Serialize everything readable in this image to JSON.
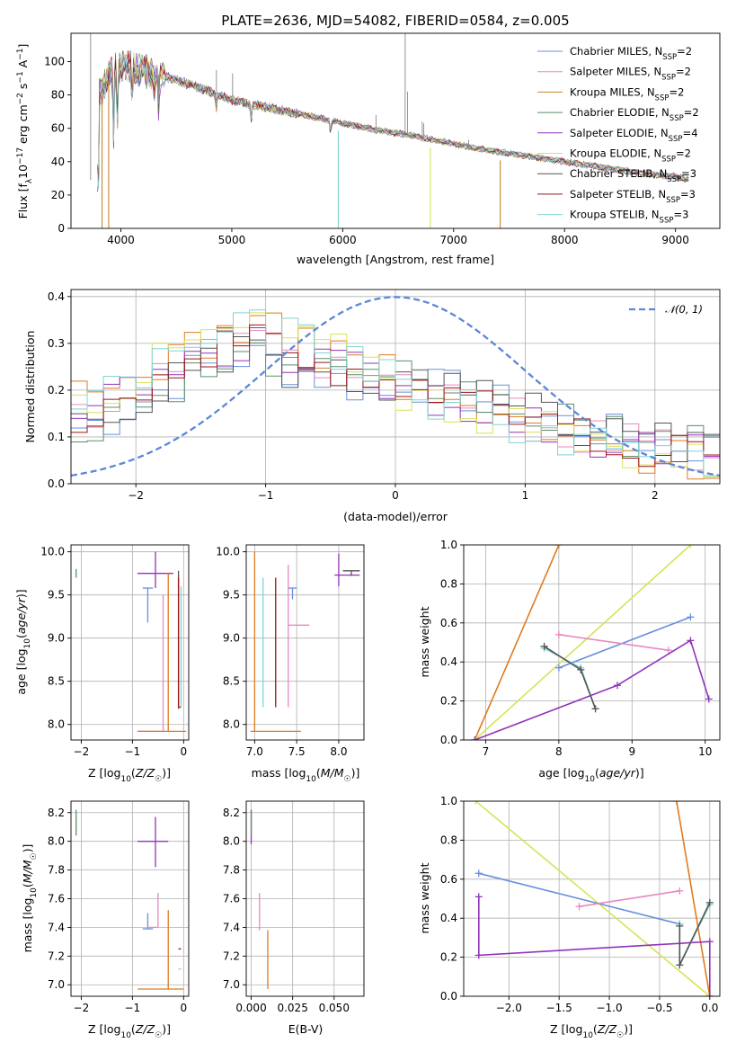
{
  "chart_data": [
    {
      "id": "spectrum",
      "type": "line",
      "title": "PLATE=2636, MJD=54082, FIBERID=0584, z=0.005",
      "xlabel": "wavelength [Angstrom, rest frame]",
      "ylabel": "Flux [f_λ 10^-17 erg cm^-2 s^-1 A^-1]",
      "ylabel_parts": [
        "Flux [f",
        "λ",
        "10",
        "−17",
        " erg cm",
        "−2",
        " s",
        "−1",
        " A",
        "−1",
        "]"
      ],
      "xlim": [
        3550,
        9400
      ],
      "ylim": [
        0,
        117
      ],
      "xticks": [
        4000,
        5000,
        6000,
        7000,
        8000,
        9000
      ],
      "yticks": [
        0,
        20,
        40,
        60,
        80,
        100
      ],
      "legend_position": "top-right",
      "grid": false,
      "continuum": {
        "x": [
          3800,
          3900,
          4000,
          4100,
          4300,
          4500,
          4800,
          5000,
          5200,
          5500,
          5800,
          6000,
          6300,
          6600,
          6900,
          7200,
          7500,
          7800,
          8100,
          8400,
          8700,
          9000,
          9120
        ],
        "y": [
          80,
          93,
          98,
          96,
          93,
          89,
          82,
          77,
          74,
          70,
          66,
          63,
          59,
          56,
          52,
          48,
          45,
          42,
          39,
          36,
          33,
          31,
          29
        ]
      },
      "series": [
        {
          "name": "Chabrier MILES, N",
          "sub": "SSP",
          "suffix": "=2",
          "color": "#6a8fdb"
        },
        {
          "name": "Salpeter MILES, N",
          "sub": "SSP",
          "suffix": "=2",
          "color": "#e68ac0"
        },
        {
          "name": "Kroupa MILES, N",
          "sub": "SSP",
          "suffix": "=2",
          "color": "#c8862e"
        },
        {
          "name": "Chabrier ELODIE, N",
          "sub": "SSP",
          "suffix": "=2",
          "color": "#5b8f6a"
        },
        {
          "name": "Salpeter ELODIE, N",
          "sub": "SSP",
          "suffix": "=4",
          "color": "#9133b8"
        },
        {
          "name": "Kroupa ELODIE, N",
          "sub": "SSP",
          "suffix": "=2",
          "color": "#d7e35a"
        },
        {
          "name": "Chabrier STELIB, N",
          "sub": "SSP",
          "suffix": "=3",
          "color": "#555555"
        },
        {
          "name": "Salpeter STELIB, N",
          "sub": "SSP",
          "suffix": "=3",
          "color": "#9c1414"
        },
        {
          "name": "Kroupa STELIB, N",
          "sub": "SSP",
          "suffix": "=3",
          "color": "#7fd4d4"
        }
      ],
      "emission_lines": [
        {
          "x": 3727,
          "top": 117
        },
        {
          "x": 4340,
          "top": 75
        },
        {
          "x": 4861,
          "top": 95
        },
        {
          "x": 4959,
          "top": 80
        },
        {
          "x": 5007,
          "top": 93
        },
        {
          "x": 6300,
          "top": 68
        },
        {
          "x": 6563,
          "top": 117
        },
        {
          "x": 6584,
          "top": 82
        },
        {
          "x": 6717,
          "top": 64
        },
        {
          "x": 6731,
          "top": 63
        },
        {
          "x": 7135,
          "top": 53
        }
      ],
      "drop_lines": [
        {
          "x": 3830,
          "color": "#c8862e"
        },
        {
          "x": 3890,
          "color": "#c8862e"
        },
        {
          "x": 5960,
          "color": "#7fd4d4"
        },
        {
          "x": 6790,
          "color": "#d7e35a"
        },
        {
          "x": 7420,
          "color": "#c8862e"
        }
      ]
    },
    {
      "id": "residuals",
      "type": "line",
      "xlabel": "(data-model)/error",
      "ylabel": "Normed distribution",
      "xlim": [
        -2.5,
        2.5
      ],
      "ylim": [
        0,
        0.415
      ],
      "xticks": [
        -2,
        -1,
        0,
        1,
        2
      ],
      "xticklabels": [
        "−2",
        "−1",
        "0",
        "1",
        "2"
      ],
      "yticks": [
        0.0,
        0.1,
        0.2,
        0.3,
        0.4
      ],
      "yticklabels": [
        "0.0",
        "0.1",
        "0.2",
        "0.3",
        "0.4"
      ],
      "grid": true,
      "legend_position": "top-right",
      "gaussian_label": "𝒩(0, 1)",
      "gaussian_color": "#5b87d8",
      "bin_edges_start": -2.5,
      "bin_width": 0.125,
      "hist_colors": [
        "#6a8fdb",
        "#e68ac0",
        "#e07b20",
        "#5b8f6a",
        "#9133b8",
        "#d7e35a",
        "#555555",
        "#9c1414",
        "#7fd4d4"
      ],
      "hist_base": [
        0.15,
        0.16,
        0.17,
        0.19,
        0.21,
        0.23,
        0.25,
        0.27,
        0.28,
        0.29,
        0.3,
        0.3,
        0.29,
        0.28,
        0.27,
        0.26,
        0.25,
        0.24,
        0.23,
        0.22,
        0.21,
        0.2,
        0.19,
        0.185,
        0.175,
        0.165,
        0.155,
        0.145,
        0.135,
        0.125,
        0.115,
        0.105,
        0.1,
        0.09,
        0.085,
        0.08,
        0.075,
        0.07,
        0.065,
        0.06
      ]
    },
    {
      "id": "age-vs-Z",
      "type": "scatter",
      "xlabel": "Z [log10(Z/Z☉)]",
      "xlabel_parts": [
        "Z [log",
        "10",
        "(",
        "Z/Z",
        "☉",
        ")]"
      ],
      "ylabel": "age [log10(age/yr)]",
      "ylabel_parts": [
        "age  [log",
        "10",
        "(",
        "age/yr",
        ")]"
      ],
      "xlim": [
        -2.2,
        0.1
      ],
      "ylim": [
        7.82,
        10.08
      ],
      "xticks": [
        -2,
        -1,
        0
      ],
      "xticklabels": [
        "−2",
        "−1",
        "0"
      ],
      "yticks": [
        8.0,
        8.5,
        9.0,
        9.5,
        10.0
      ],
      "yticklabels": [
        "8.0",
        "8.5",
        "9.0",
        "9.5",
        "10.0"
      ],
      "grid": true
    },
    {
      "id": "age-vs-mass",
      "type": "scatter",
      "xlabel": "mass [log10(M/M☉)]",
      "xlabel_parts": [
        "mass [log",
        "10",
        "(",
        "M/M",
        "☉",
        ")]"
      ],
      "xlim": [
        6.9,
        8.3
      ],
      "ylim": [
        7.82,
        10.08
      ],
      "xticks": [
        7.0,
        7.5,
        8.0
      ],
      "xticklabels": [
        "7.0",
        "7.5",
        "8.0"
      ],
      "yticks": [
        8.0,
        8.5,
        9.0,
        9.5,
        10.0
      ],
      "yticklabels": [
        "8.0",
        "8.5",
        "9.0",
        "9.5",
        "10.0"
      ],
      "grid": true
    },
    {
      "id": "mass-weight-vs-age",
      "type": "line",
      "xlabel": "age [log10(age/yr)]",
      "xlabel_parts": [
        "age  [log",
        "10",
        "(",
        "age/yr",
        ")]"
      ],
      "ylabel": "mass weight",
      "xlim": [
        6.7,
        10.2
      ],
      "ylim": [
        0,
        1
      ],
      "xticks": [
        7,
        8,
        9,
        10
      ],
      "xticklabels": [
        "7",
        "8",
        "9",
        "10"
      ],
      "yticks": [
        0.0,
        0.2,
        0.4,
        0.6,
        0.8,
        1.0
      ],
      "yticklabels": [
        "0.0",
        "0.2",
        "0.4",
        "0.6",
        "0.8",
        "1.0"
      ],
      "grid": true,
      "series": [
        {
          "color": "#e07b20",
          "x": [
            6.85,
            8.0
          ],
          "y": [
            0.0,
            1.0
          ]
        },
        {
          "color": "#d7e35a",
          "x": [
            6.85,
            9.8
          ],
          "y": [
            0.0,
            1.0
          ]
        },
        {
          "color": "#6a8fdb",
          "x": [
            8.0,
            9.8
          ],
          "y": [
            0.37,
            0.63
          ]
        },
        {
          "color": "#e68ac0",
          "x": [
            8.0,
            9.5
          ],
          "y": [
            0.54,
            0.46
          ]
        },
        {
          "color": "#9133b8",
          "x": [
            6.85,
            8.8,
            9.8,
            10.05
          ],
          "y": [
            0.0,
            0.28,
            0.51,
            0.21
          ]
        },
        {
          "color": "#7fd4d4",
          "x": [
            7.8,
            8.3,
            8.5
          ],
          "y": [
            0.47,
            0.37,
            0.16
          ]
        },
        {
          "color": "#555555",
          "x": [
            7.8,
            8.3,
            8.5
          ],
          "y": [
            0.48,
            0.36,
            0.16
          ]
        }
      ]
    },
    {
      "id": "mass-vs-Z",
      "type": "scatter",
      "xlabel": "Z [log10(Z/Z☉)]",
      "xlabel_parts": [
        "Z [log",
        "10",
        "(",
        "Z/Z",
        "☉",
        ")]"
      ],
      "ylabel": "mass [log10(M/M☉)]",
      "ylabel_parts": [
        "mass [log",
        "10",
        "(",
        "M/M",
        "☉",
        ")]"
      ],
      "xlim": [
        -2.2,
        0.1
      ],
      "ylim": [
        6.92,
        8.28
      ],
      "xticks": [
        -2,
        -1,
        0
      ],
      "xticklabels": [
        "−2",
        "−1",
        "0"
      ],
      "yticks": [
        7.0,
        7.2,
        7.4,
        7.6,
        7.8,
        8.0,
        8.2
      ],
      "yticklabels": [
        "7.0",
        "7.2",
        "7.4",
        "7.6",
        "7.8",
        "8.0",
        "8.2"
      ],
      "grid": true
    },
    {
      "id": "mass-vs-ebv",
      "type": "scatter",
      "xlabel": "E(B-V)",
      "xlim": [
        -0.003,
        0.068
      ],
      "ylim": [
        6.92,
        8.28
      ],
      "xticks": [
        0.0,
        0.025,
        0.05
      ],
      "xticklabels": [
        "0.000",
        "0.025",
        "0.050"
      ],
      "yticks": [
        7.0,
        7.2,
        7.4,
        7.6,
        7.8,
        8.0,
        8.2
      ],
      "yticklabels": [
        "7.0",
        "7.2",
        "7.4",
        "7.6",
        "7.8",
        "8.0",
        "8.2"
      ],
      "grid": true
    },
    {
      "id": "mass-weight-vs-Z",
      "type": "line",
      "xlabel": "Z [log10(Z/Z☉)]",
      "xlabel_parts": [
        "Z [log",
        "10",
        "(",
        "Z/Z",
        "☉",
        ")]"
      ],
      "ylabel": "mass weight",
      "xlim": [
        -2.45,
        0.1
      ],
      "ylim": [
        0,
        1
      ],
      "xticks": [
        -2.0,
        -1.5,
        -1.0,
        -0.5,
        0.0
      ],
      "xticklabels": [
        "−2.0",
        "−1.5",
        "−1.0",
        "−0.5",
        "0.0"
      ],
      "yticks": [
        0.0,
        0.2,
        0.4,
        0.6,
        0.8,
        1.0
      ],
      "yticklabels": [
        "0.0",
        "0.2",
        "0.4",
        "0.6",
        "0.8",
        "1.0"
      ],
      "grid": true,
      "series": [
        {
          "color": "#e07b20",
          "x": [
            -0.33,
            0.0
          ],
          "y": [
            1.0,
            0.0
          ]
        },
        {
          "color": "#d7e35a",
          "x": [
            -2.33,
            0.0
          ],
          "y": [
            1.0,
            0.0
          ]
        },
        {
          "color": "#6a8fdb",
          "x": [
            -2.3,
            -0.3
          ],
          "y": [
            0.63,
            0.37
          ]
        },
        {
          "color": "#e68ac0",
          "x": [
            -1.3,
            -0.3
          ],
          "y": [
            0.46,
            0.54
          ]
        },
        {
          "color": "#9133b8",
          "x": [
            -2.3,
            -2.3,
            0.0,
            0.0
          ],
          "y": [
            0.51,
            0.21,
            0.28,
            0.0
          ]
        },
        {
          "color": "#7fd4d4",
          "x": [
            -0.3,
            -0.3,
            0.0
          ],
          "y": [
            0.37,
            0.16,
            0.47
          ]
        },
        {
          "color": "#555555",
          "x": [
            -0.3,
            -0.3,
            0.0
          ],
          "y": [
            0.36,
            0.16,
            0.48
          ]
        }
      ]
    }
  ]
}
